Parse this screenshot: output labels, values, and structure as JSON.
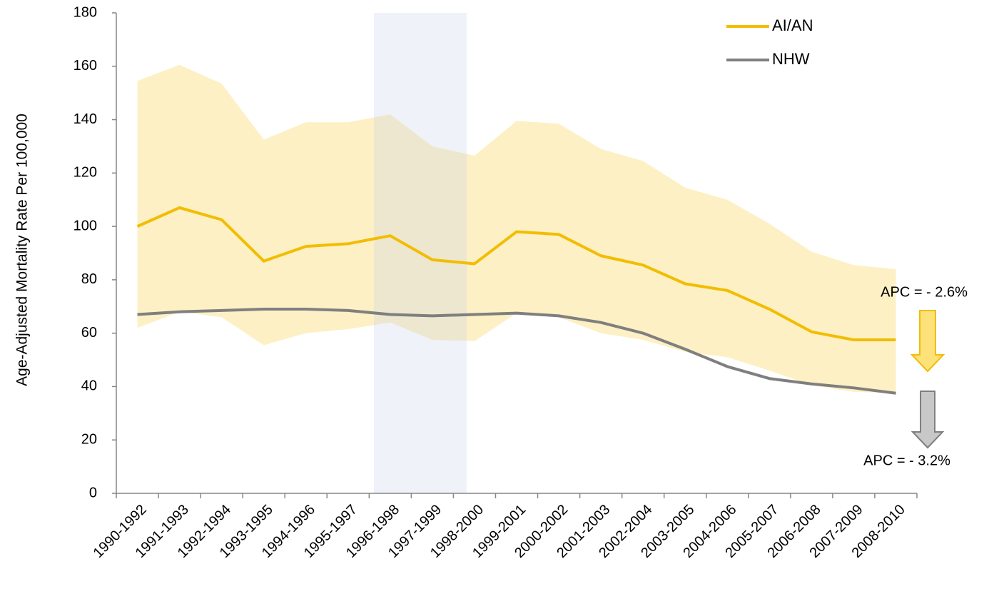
{
  "chart_data": {
    "type": "line",
    "y_label": "Age-Adjusted Mortality Rate Per 100,000",
    "categories": [
      "1990-1992",
      "1991-1993",
      "1992-1994",
      "1993-1995",
      "1994-1996",
      "1995-1997",
      "1996-1998",
      "1997-1999",
      "1998-2000",
      "1999-2001",
      "2000-2002",
      "2001-2003",
      "2002-2004",
      "2003-2005",
      "2004-2006",
      "2005-2007",
      "2006-2008",
      "2007-2009",
      "2008-2010"
    ],
    "series": [
      {
        "name": "AI/AN",
        "color": "#f2bd00",
        "values": [
          100,
          107,
          102.5,
          87,
          92.5,
          93.5,
          96.5,
          87.5,
          86,
          98,
          97,
          89,
          85.5,
          78.5,
          76,
          69,
          60.5,
          57.5,
          57.5
        ],
        "upper": [
          154.5,
          160.5,
          153.5,
          132.5,
          139,
          139,
          142,
          130,
          126.5,
          139.5,
          138.5,
          129,
          124.5,
          114.5,
          110,
          101,
          90.5,
          85.5,
          84
        ],
        "lower": [
          62,
          68,
          66,
          55.5,
          60,
          61.5,
          64,
          57.5,
          57,
          67.5,
          66,
          60,
          57.5,
          53,
          51,
          46,
          40.5,
          38,
          37.5
        ],
        "band_color": "#fdf0c4"
      },
      {
        "name": "NHW",
        "color": "#7f7f7f",
        "values": [
          67,
          68,
          68.5,
          69,
          69,
          68.5,
          67,
          66.5,
          67,
          67.5,
          66.5,
          64,
          60,
          54,
          47.5,
          43,
          41,
          39.5,
          37.5
        ]
      }
    ],
    "annotations": [
      "APC = - 2.6%",
      "APC = - 3.2%"
    ],
    "ylim": [
      0,
      180
    ],
    "yticks": [
      0,
      20,
      40,
      60,
      80,
      100,
      120,
      140,
      160,
      180
    ],
    "legend": "top-right"
  }
}
